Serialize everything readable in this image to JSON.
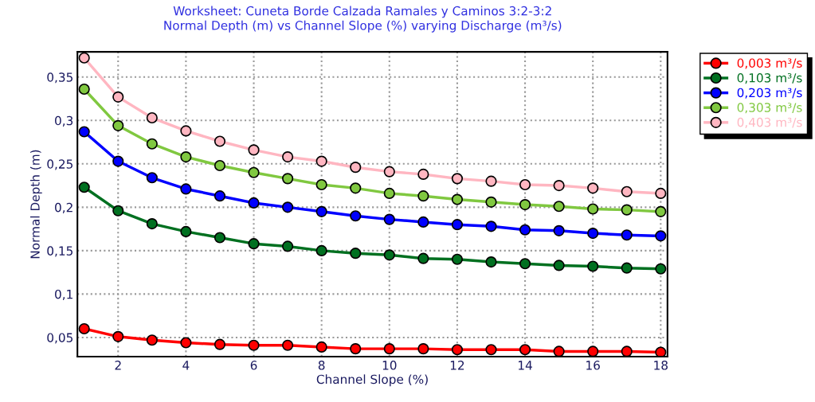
{
  "chart_data": {
    "type": "line",
    "title": "Worksheet: Cuneta Borde Calzada Ramales y Caminos 3:2-3:2\nNormal Depth (m) vs Channel Slope (%) varying Discharge (m³/s)",
    "xlabel": "Channel Slope (%)",
    "ylabel": "Normal Depth (m)",
    "x": [
      1,
      2,
      3,
      4,
      5,
      6,
      7,
      8,
      9,
      10,
      11,
      12,
      13,
      14,
      15,
      16,
      17,
      18
    ],
    "series": [
      {
        "name": "0,003 m³/s",
        "color": "#ff0000",
        "values": [
          0.06,
          0.051,
          0.047,
          0.044,
          0.042,
          0.041,
          0.041,
          0.039,
          0.037,
          0.037,
          0.037,
          0.036,
          0.036,
          0.036,
          0.034,
          0.034,
          0.034,
          0.033
        ]
      },
      {
        "name": "0,103 m³/s",
        "color": "#007020",
        "values": [
          0.223,
          0.196,
          0.181,
          0.172,
          0.165,
          0.158,
          0.155,
          0.15,
          0.147,
          0.145,
          0.141,
          0.14,
          0.137,
          0.135,
          0.133,
          0.132,
          0.13,
          0.129
        ]
      },
      {
        "name": "0,203 m³/s",
        "color": "#0000ff",
        "values": [
          0.287,
          0.253,
          0.234,
          0.221,
          0.213,
          0.205,
          0.2,
          0.195,
          0.19,
          0.186,
          0.183,
          0.18,
          0.178,
          0.174,
          0.173,
          0.17,
          0.168,
          0.167
        ]
      },
      {
        "name": "0,303 m³/s",
        "color": "#80c840",
        "values": [
          0.336,
          0.294,
          0.273,
          0.258,
          0.248,
          0.24,
          0.233,
          0.226,
          0.222,
          0.216,
          0.213,
          0.209,
          0.206,
          0.203,
          0.201,
          0.198,
          0.197,
          0.195
        ]
      },
      {
        "name": "0,403 m³/s",
        "color": "#ffb6c1",
        "values": [
          0.372,
          0.327,
          0.303,
          0.288,
          0.276,
          0.266,
          0.258,
          0.253,
          0.246,
          0.241,
          0.238,
          0.233,
          0.23,
          0.226,
          0.225,
          0.222,
          0.218,
          0.216
        ]
      }
    ],
    "xlim": [
      0.8,
      18.2
    ],
    "ylim": [
      0.028,
      0.379
    ],
    "xticks": [
      2,
      4,
      6,
      8,
      10,
      12,
      14,
      16,
      18
    ],
    "yticks": [
      {
        "value": 0.05,
        "label": "0,05"
      },
      {
        "value": 0.1,
        "label": "0,1"
      },
      {
        "value": 0.15,
        "label": "0,15"
      },
      {
        "value": 0.2,
        "label": "0,2"
      },
      {
        "value": 0.25,
        "label": "0,25"
      },
      {
        "value": 0.3,
        "label": "0,3"
      },
      {
        "value": 0.35,
        "label": "0,35"
      }
    ],
    "grid": true,
    "legend": "top right",
    "marker": "circle",
    "line_style": "solid"
  }
}
